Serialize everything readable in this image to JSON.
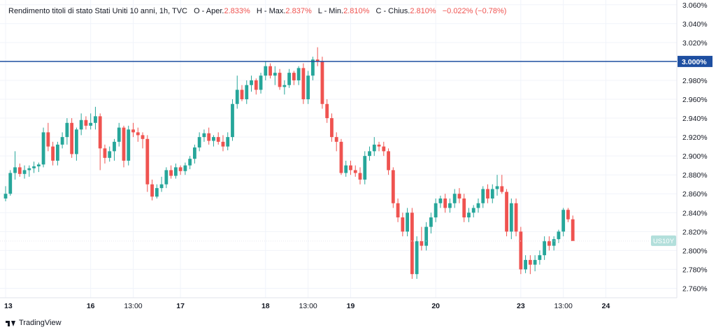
{
  "legend": {
    "title": "Rendimento titoli di stato Stati Uniti 10 anni, 1h, TVC",
    "open_label": "O - Aper.",
    "open_value": "2.833%",
    "high_label": "H - Max.",
    "high_value": "2.837%",
    "low_label": "L - Min.",
    "low_value": "2.810%",
    "close_label": "C - Chius.",
    "close_value": "2.810%",
    "change": "−0.022% (−0.78%)"
  },
  "brand": "TradingView",
  "colors": {
    "up": "#26a69a",
    "down": "#ef5350",
    "hline": "#1e4fa1",
    "symbol_badge": "#b2dfdb",
    "axis": "#787b86"
  },
  "chart_data": {
    "type": "candlestick",
    "y_axis": {
      "min": 2.75,
      "max": 3.065,
      "unit": "%",
      "ticks": [
        "3.060%",
        "3.040%",
        "3.020%",
        "2.980%",
        "2.960%",
        "2.940%",
        "2.920%",
        "2.900%",
        "2.880%",
        "2.860%",
        "2.840%",
        "2.820%",
        "2.800%",
        "2.780%",
        "2.760%"
      ]
    },
    "x_axis": {
      "labels": [
        {
          "text": "13",
          "index": 0
        },
        {
          "text": "16",
          "index": 18
        },
        {
          "text": "13:00",
          "index": 27
        },
        {
          "text": "17",
          "index": 37
        },
        {
          "text": "18",
          "index": 55
        },
        {
          "text": "13:00",
          "index": 64
        },
        {
          "text": "19",
          "index": 73
        },
        {
          "text": "20",
          "index": 91
        },
        {
          "text": "23",
          "index": 109
        },
        {
          "text": "13:00",
          "index": 118
        },
        {
          "text": "24",
          "index": 127
        }
      ]
    },
    "horizontal_line": {
      "value": 3.0,
      "label": "3.000%"
    },
    "symbol": {
      "label": "US10Y",
      "value": 2.81
    },
    "candles": [
      [
        2.855,
        2.868,
        2.852,
        2.86
      ],
      [
        2.86,
        2.885,
        2.858,
        2.882
      ],
      [
        2.882,
        2.905,
        2.875,
        2.888
      ],
      [
        2.888,
        2.892,
        2.878,
        2.881
      ],
      [
        2.881,
        2.89,
        2.876,
        2.885
      ],
      [
        2.885,
        2.89,
        2.878,
        2.887
      ],
      [
        2.887,
        2.894,
        2.882,
        2.889
      ],
      [
        2.889,
        2.893,
        2.883,
        2.891
      ],
      [
        2.891,
        2.93,
        2.888,
        2.925
      ],
      [
        2.925,
        2.935,
        2.905,
        2.91
      ],
      [
        2.91,
        2.915,
        2.89,
        2.895
      ],
      [
        2.895,
        2.915,
        2.89,
        2.912
      ],
      [
        2.912,
        2.925,
        2.908,
        2.92
      ],
      [
        2.92,
        2.94,
        2.912,
        2.935
      ],
      [
        2.935,
        2.94,
        2.898,
        2.902
      ],
      [
        2.902,
        2.93,
        2.895,
        2.928
      ],
      [
        2.928,
        2.945,
        2.922,
        2.938
      ],
      [
        2.938,
        2.942,
        2.928,
        2.932
      ],
      [
        2.932,
        2.945,
        2.928,
        2.935
      ],
      [
        2.935,
        2.952,
        2.928,
        2.942
      ],
      [
        2.942,
        2.945,
        2.885,
        2.908
      ],
      [
        2.908,
        2.912,
        2.892,
        2.898
      ],
      [
        2.898,
        2.91,
        2.894,
        2.905
      ],
      [
        2.905,
        2.918,
        2.895,
        2.915
      ],
      [
        2.915,
        2.935,
        2.91,
        2.93
      ],
      [
        2.93,
        2.932,
        2.888,
        2.895
      ],
      [
        2.895,
        2.932,
        2.89,
        2.928
      ],
      [
        2.928,
        2.935,
        2.92,
        2.925
      ],
      [
        2.925,
        2.93,
        2.915,
        2.922
      ],
      [
        2.922,
        2.925,
        2.908,
        2.918
      ],
      [
        2.918,
        2.922,
        2.862,
        2.87
      ],
      [
        2.87,
        2.875,
        2.853,
        2.857
      ],
      [
        2.857,
        2.87,
        2.855,
        2.866
      ],
      [
        2.866,
        2.878,
        2.862,
        2.87
      ],
      [
        2.87,
        2.888,
        2.866,
        2.885
      ],
      [
        2.885,
        2.89,
        2.876,
        2.879
      ],
      [
        2.879,
        2.892,
        2.876,
        2.888
      ],
      [
        2.888,
        2.89,
        2.88,
        2.884
      ],
      [
        2.884,
        2.893,
        2.88,
        2.89
      ],
      [
        2.89,
        2.9,
        2.886,
        2.897
      ],
      [
        2.897,
        2.912,
        2.892,
        2.909
      ],
      [
        2.909,
        2.925,
        2.905,
        2.92
      ],
      [
        2.92,
        2.928,
        2.915,
        2.924
      ],
      [
        2.924,
        2.93,
        2.912,
        2.916
      ],
      [
        2.916,
        2.922,
        2.91,
        2.92
      ],
      [
        2.92,
        2.925,
        2.912,
        2.915
      ],
      [
        2.915,
        2.922,
        2.905,
        2.91
      ],
      [
        2.91,
        2.925,
        2.906,
        2.92
      ],
      [
        2.92,
        2.96,
        2.916,
        2.955
      ],
      [
        2.955,
        2.985,
        2.95,
        2.97
      ],
      [
        2.97,
        2.975,
        2.958,
        2.96
      ],
      [
        2.96,
        2.98,
        2.955,
        2.975
      ],
      [
        2.975,
        2.985,
        2.968,
        2.98
      ],
      [
        2.98,
        2.982,
        2.965,
        2.97
      ],
      [
        2.97,
        2.988,
        2.966,
        2.985
      ],
      [
        2.985,
        3.0,
        2.98,
        2.995
      ],
      [
        2.995,
        2.998,
        2.982,
        2.985
      ],
      [
        2.985,
        2.995,
        2.975,
        2.988
      ],
      [
        2.988,
        2.992,
        2.97,
        2.973
      ],
      [
        2.973,
        2.98,
        2.965,
        2.975
      ],
      [
        2.975,
        2.992,
        2.972,
        2.988
      ],
      [
        2.988,
        2.99,
        2.975,
        2.98
      ],
      [
        2.98,
        2.995,
        2.975,
        2.993
      ],
      [
        2.993,
        2.998,
        2.955,
        2.96
      ],
      [
        2.96,
        2.99,
        2.955,
        2.985
      ],
      [
        2.985,
        3.005,
        2.98,
        3.002
      ],
      [
        3.002,
        3.015,
        2.995,
        3.0
      ],
      [
        3.0,
        3.005,
        2.95,
        2.955
      ],
      [
        2.955,
        2.96,
        2.935,
        2.94
      ],
      [
        2.94,
        2.945,
        2.915,
        2.92
      ],
      [
        2.92,
        2.925,
        2.905,
        2.915
      ],
      [
        2.915,
        2.918,
        2.88,
        2.882
      ],
      [
        2.882,
        2.895,
        2.878,
        2.89
      ],
      [
        2.89,
        2.895,
        2.88,
        2.885
      ],
      [
        2.885,
        2.89,
        2.878,
        2.882
      ],
      [
        2.882,
        2.888,
        2.87,
        2.875
      ],
      [
        2.875,
        2.905,
        2.87,
        2.9
      ],
      [
        2.9,
        2.91,
        2.895,
        2.905
      ],
      [
        2.905,
        2.92,
        2.9,
        2.912
      ],
      [
        2.912,
        2.915,
        2.905,
        2.91
      ],
      [
        2.91,
        2.915,
        2.9,
        2.905
      ],
      [
        2.905,
        2.908,
        2.88,
        2.885
      ],
      [
        2.885,
        2.888,
        2.845,
        2.85
      ],
      [
        2.85,
        2.855,
        2.83,
        2.835
      ],
      [
        2.835,
        2.84,
        2.815,
        2.82
      ],
      [
        2.82,
        2.845,
        2.815,
        2.84
      ],
      [
        2.84,
        2.845,
        2.77,
        2.775
      ],
      [
        2.775,
        2.815,
        2.77,
        2.81
      ],
      [
        2.81,
        2.825,
        2.8,
        2.805
      ],
      [
        2.805,
        2.83,
        2.8,
        2.825
      ],
      [
        2.825,
        2.84,
        2.818,
        2.835
      ],
      [
        2.835,
        2.855,
        2.83,
        2.85
      ],
      [
        2.85,
        2.858,
        2.845,
        2.855
      ],
      [
        2.855,
        2.86,
        2.84,
        2.845
      ],
      [
        2.845,
        2.855,
        2.84,
        2.85
      ],
      [
        2.85,
        2.865,
        2.845,
        2.86
      ],
      [
        2.86,
        2.866,
        2.85,
        2.855
      ],
      [
        2.855,
        2.86,
        2.83,
        2.835
      ],
      [
        2.835,
        2.845,
        2.83,
        2.84
      ],
      [
        2.84,
        2.848,
        2.835,
        2.845
      ],
      [
        2.845,
        2.855,
        2.84,
        2.85
      ],
      [
        2.85,
        2.868,
        2.845,
        2.865
      ],
      [
        2.865,
        2.87,
        2.85,
        2.855
      ],
      [
        2.855,
        2.87,
        2.85,
        2.865
      ],
      [
        2.865,
        2.88,
        2.858,
        2.868
      ],
      [
        2.868,
        2.88,
        2.86,
        2.862
      ],
      [
        2.862,
        2.865,
        2.815,
        2.82
      ],
      [
        2.82,
        2.855,
        2.812,
        2.85
      ],
      [
        2.85,
        2.855,
        2.815,
        2.82
      ],
      [
        2.82,
        2.825,
        2.775,
        2.78
      ],
      [
        2.78,
        2.795,
        2.776,
        2.79
      ],
      [
        2.79,
        2.795,
        2.775,
        2.785
      ],
      [
        2.785,
        2.795,
        2.778,
        2.79
      ],
      [
        2.79,
        2.8,
        2.785,
        2.795
      ],
      [
        2.795,
        2.815,
        2.79,
        2.81
      ],
      [
        2.81,
        2.815,
        2.8,
        2.805
      ],
      [
        2.805,
        2.815,
        2.8,
        2.812
      ],
      [
        2.812,
        2.822,
        2.808,
        2.82
      ],
      [
        2.82,
        2.845,
        2.815,
        2.843
      ],
      [
        2.843,
        2.845,
        2.83,
        2.833
      ],
      [
        2.833,
        2.837,
        2.81,
        2.81
      ]
    ]
  }
}
